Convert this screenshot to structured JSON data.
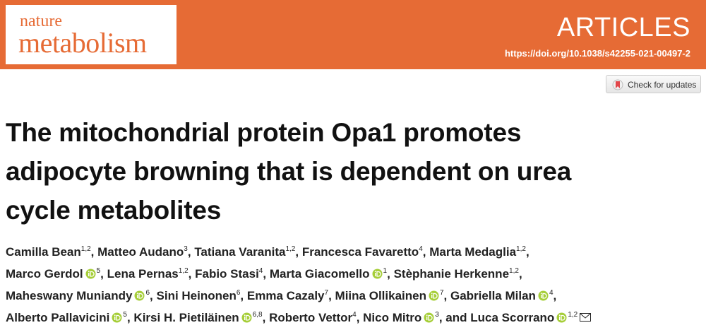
{
  "header": {
    "journal_top": "nature",
    "journal_bottom": "metabolism",
    "section": "ARTICLES",
    "doi": "https://doi.org/10.1038/s42255-021-00497-2",
    "check_updates": "Check for updates"
  },
  "title_lines": [
    "The mitochondrial protein Opa1 promotes",
    "adipocyte browning that is dependent on urea",
    "cycle metabolites"
  ],
  "authors": {
    "separator": ",",
    "conjunction": "and",
    "lines": [
      [
        {
          "name": "Camilla Bean",
          "sup": "1,2",
          "orcid": false
        },
        {
          "name": "Matteo Audano",
          "sup": "3",
          "orcid": false
        },
        {
          "name": "Tatiana Varanita",
          "sup": "1,2",
          "orcid": false
        },
        {
          "name": "Francesca Favaretto",
          "sup": "4",
          "orcid": false
        },
        {
          "name": "Marta Medaglia",
          "sup": "1,2",
          "orcid": false
        }
      ],
      [
        {
          "name": "Marco Gerdol",
          "sup": "5",
          "orcid": true
        },
        {
          "name": "Lena Pernas",
          "sup": "1,2",
          "orcid": false
        },
        {
          "name": "Fabio Stasi",
          "sup": "4",
          "orcid": false
        },
        {
          "name": "Marta Giacomello",
          "sup": "1",
          "orcid": true
        },
        {
          "name": "Stèphanie Herkenne",
          "sup": "1,2",
          "orcid": false
        }
      ],
      [
        {
          "name": "Maheswany Muniandy",
          "sup": "6",
          "orcid": true
        },
        {
          "name": "Sini Heinonen",
          "sup": "6",
          "orcid": false
        },
        {
          "name": "Emma Cazaly",
          "sup": "7",
          "orcid": false
        },
        {
          "name": "Miina Ollikainen",
          "sup": "7",
          "orcid": true
        },
        {
          "name": "Gabriella Milan",
          "sup": "4",
          "orcid": true
        }
      ],
      [
        {
          "name": "Alberto Pallavicini",
          "sup": "5",
          "orcid": true
        },
        {
          "name": "Kirsi H. Pietiläinen",
          "sup": "6,8",
          "orcid": true
        },
        {
          "name": "Roberto Vettor",
          "sup": "4",
          "orcid": false
        },
        {
          "name": "Nico Mitro",
          "sup": "3",
          "orcid": true
        },
        {
          "name": "Luca Scorrano",
          "sup": "1,2",
          "orcid": true
        }
      ]
    ]
  }
}
